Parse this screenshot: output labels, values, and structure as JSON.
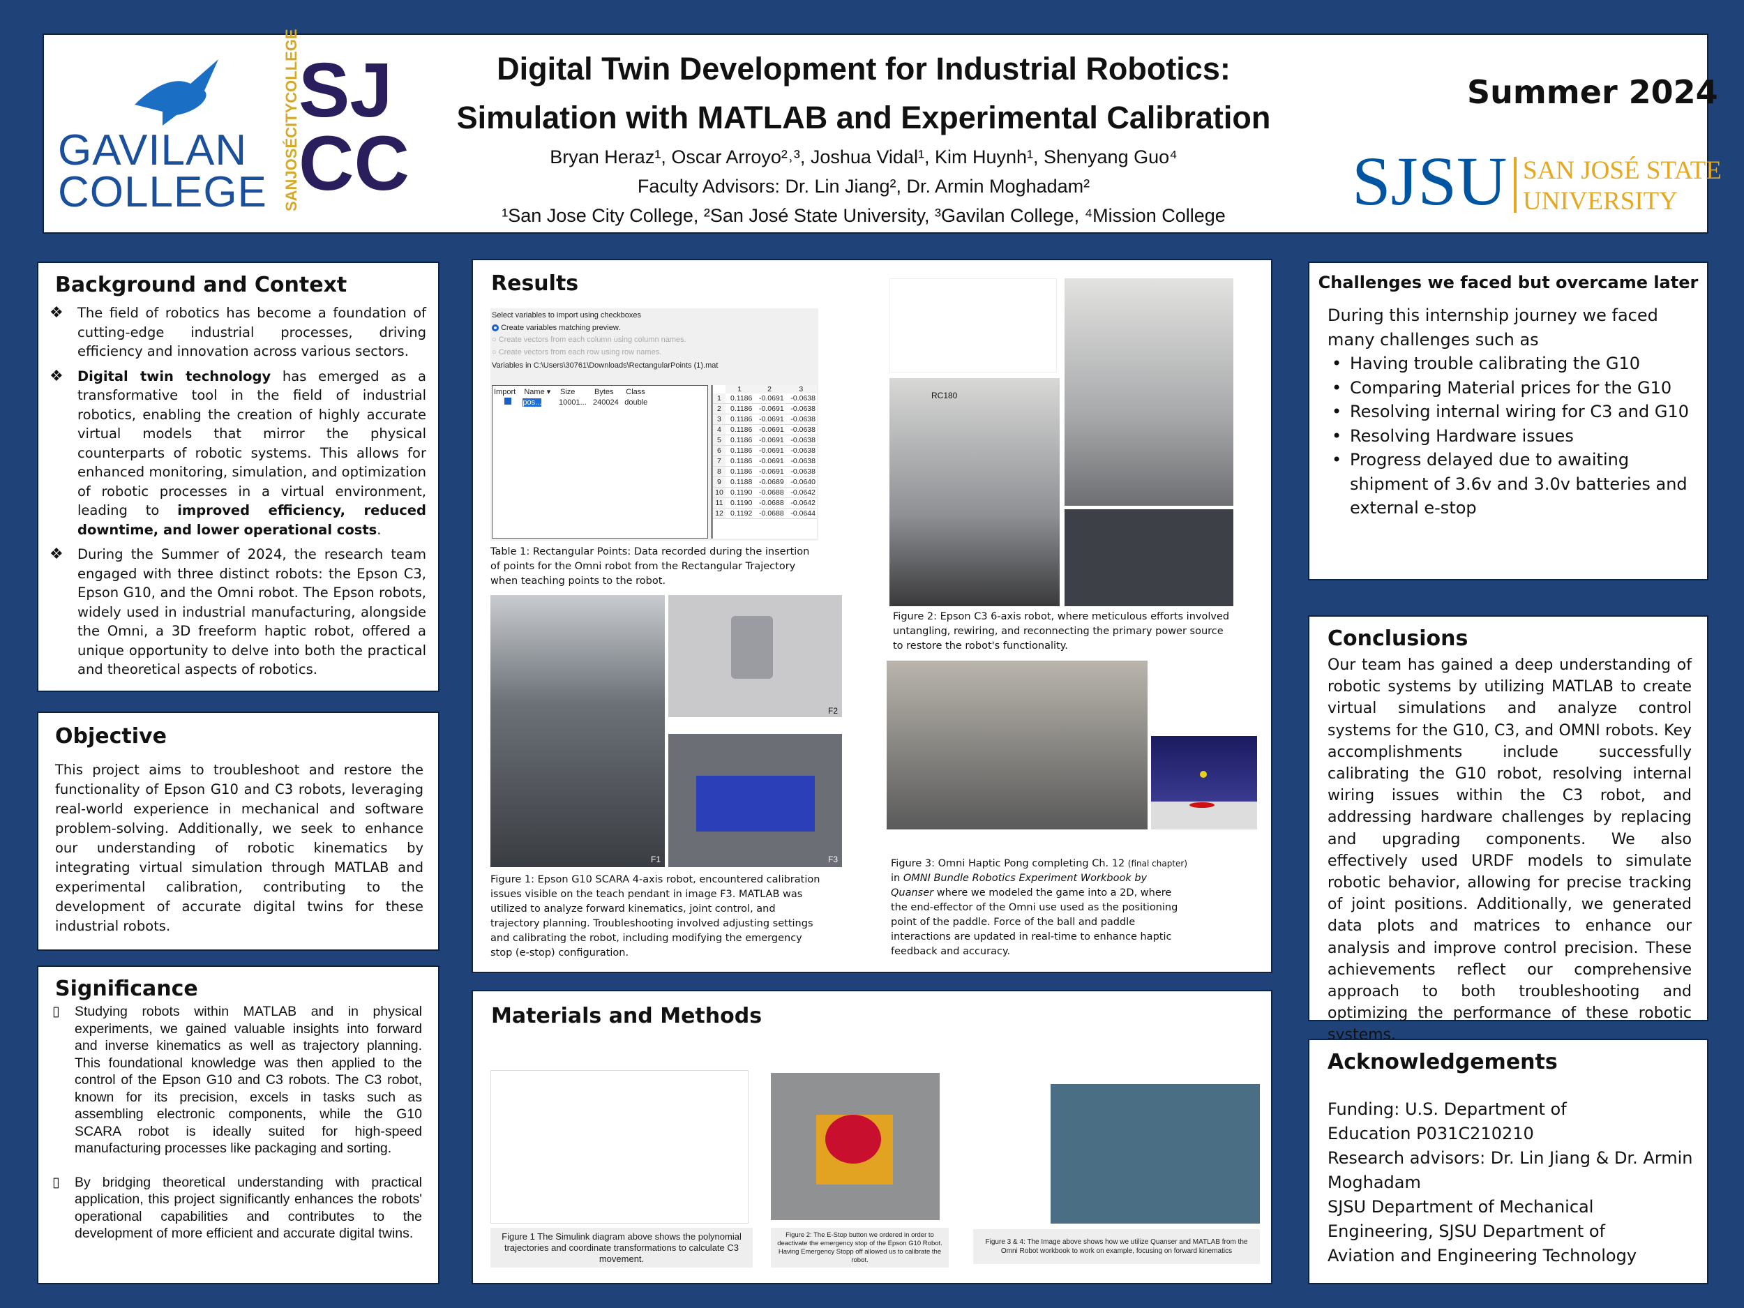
{
  "header": {
    "title_line1": "Digital Twin Development for Industrial Robotics:",
    "title_line2": "Simulation with MATLAB and Experimental Calibration",
    "authors": "Bryan Heraz¹, Oscar Arroyo²˒³, Joshua Vidal¹, Kim Huynh¹, Shenyang Guo⁴",
    "advisors": "Faculty Advisors: Dr. Lin Jiang², Dr. Armin Moghadam²",
    "affiliations": "¹San Jose City College, ²San José State University, ³Gavilan College, ⁴Mission College",
    "term": "Summer 2024",
    "logo_gavilan_1": "GAVILAN",
    "logo_gavilan_2": "COLLEGE",
    "logo_sjcc_vertical": "SANJOSÉCITYCOLLEGE",
    "logo_sjcc_1": "SJ",
    "logo_sjcc_2": "CC",
    "logo_sjsu": "SJSU",
    "logo_sjsu_name_1": "SAN JOSÉ STATE",
    "logo_sjsu_name_2": "UNIVERSITY"
  },
  "colors": {
    "background": "#1f4379",
    "sjsu_blue": "#0055a2",
    "sjsu_gold": "#e5a823",
    "gavilan_blue": "#1a4f9c",
    "sjcc_purple": "#2a1f5c"
  },
  "background": {
    "heading": "Background and Context",
    "p1": "The field of robotics has become a foundation of cutting-edge industrial processes, driving efficiency and innovation across various sectors.",
    "p2_bold": "Digital twin technology",
    "p2": " has emerged as a transformative tool in the field of industrial robotics, enabling the creation of highly accurate virtual models that mirror the physical counterparts of robotic systems. This allows for enhanced monitoring, simulation, and optimization of robotic processes in a virtual environment, leading to ",
    "p2_bold_end": "improved efficiency, reduced downtime, and lower operational costs",
    "p2_end": ".",
    "p3": "During the Summer of 2024, the research team engaged with three distinct robots: the Epson C3, Epson G10, and the Omni robot. The Epson robots, widely used in industrial manufacturing, alongside the Omni, a 3D freeform haptic robot, offered a unique opportunity to delve into both the practical and theoretical aspects of robotics."
  },
  "objective": {
    "heading": "Objective",
    "text": "This project aims to troubleshoot and restore the functionality of Epson G10 and C3 robots, leveraging real-world experience in mechanical and software problem-solving. Additionally, we seek to enhance our understanding of robotic kinematics by integrating virtual simulation through MATLAB and experimental calibration, contributing to the development of accurate digital twins for these industrial robots."
  },
  "significance": {
    "heading": "Significance",
    "p1": "Studying robots within MATLAB and in physical experiments, we gained valuable insights into forward and inverse kinematics as well as trajectory planning. This foundational knowledge was then applied to the control of the Epson G10 and C3 robots. The C3 robot, known for its precision, excels in tasks such as assembling electronic components, while the G10 SCARA robot is ideally suited for high-speed manufacturing processes like packaging and sorting.",
    "p2": "By bridging theoretical understanding with practical application, this project significantly enhances the robots' operational capabilities and contributes to the development of more efficient and accurate digital twins."
  },
  "results": {
    "heading": "Results",
    "import_dialog": {
      "prompt": "Select variables to import using checkboxes",
      "opt1": "Create variables matching preview.",
      "opt2": "Create vectors from each column using column names.",
      "opt3": "Create vectors from each row using row names.",
      "path": "Variables in C:\\Users\\30761\\Downloads\\RectangularPoints (1).mat",
      "cols": [
        "Import",
        "Name ▾",
        "Size",
        "Bytes",
        "Class"
      ],
      "var": {
        "name": "pos...",
        "size": "10001...",
        "bytes": "240024",
        "class": "double"
      },
      "grid_cols": [
        "1",
        "2",
        "3"
      ],
      "rows": [
        [
          "1",
          "0.1186",
          "-0.0691",
          "-0.0638"
        ],
        [
          "2",
          "0.1186",
          "-0.0691",
          "-0.0638"
        ],
        [
          "3",
          "0.1186",
          "-0.0691",
          "-0.0638"
        ],
        [
          "4",
          "0.1186",
          "-0.0691",
          "-0.0638"
        ],
        [
          "5",
          "0.1186",
          "-0.0691",
          "-0.0638"
        ],
        [
          "6",
          "0.1186",
          "-0.0691",
          "-0.0638"
        ],
        [
          "7",
          "0.1186",
          "-0.0691",
          "-0.0638"
        ],
        [
          "8",
          "0.1186",
          "-0.0691",
          "-0.0638"
        ],
        [
          "9",
          "0.1188",
          "-0.0689",
          "-0.0640"
        ],
        [
          "10",
          "0.1190",
          "-0.0688",
          "-0.0642"
        ],
        [
          "11",
          "0.1190",
          "-0.0688",
          "-0.0642"
        ],
        [
          "12",
          "0.1192",
          "-0.0688",
          "-0.0644"
        ]
      ]
    },
    "table1_caption": "Table 1: Rectangular Points: Data recorded during the insertion of points for the Omni robot from the Rectangular Trajectory when teaching points to the robot.",
    "fig1_caption": "Figure 1: Epson G10 SCARA 4-axis robot, encountered calibration issues visible on the teach pendant in image F3. MATLAB was utilized to analyze forward kinematics, joint control, and trajectory planning. Troubleshooting involved adjusting settings and calibrating the robot, including modifying the emergency stop (e-stop) configuration.",
    "fig1_labels": {
      "f1": "F1",
      "f2": "F2",
      "f3": "F3"
    },
    "rc_label": "RC180",
    "fig2_caption": "Figure 2: Epson C3 6-axis robot, where meticulous efforts involved untangling, rewiring, and reconnecting the primary power source to restore the robot's functionality.",
    "fig3_caption_a": "Figure 3: Omni Haptic Pong completing Ch. 12 ",
    "fig3_caption_small": "(final chapter)",
    "fig3_caption_b": " in ",
    "fig3_caption_italic": "OMNI Bundle Robotics Experiment Workbook by Quanser",
    "fig3_caption_c": " where we modeled the game into a 2D, where the end-effector of the Omni use used as the positioning point of the paddle. Force of the ball and paddle interactions are updated in real-time to enhance haptic feedback and accuracy."
  },
  "materials": {
    "heading": "Materials and Methods",
    "cap1": "Figure 1 The Simulink diagram above shows the polynomial trajectories and coordinate transformations to calculate C3 movement.",
    "cap2": "Figure 2: The E-Stop button we ordered in order to deactivate the emergency stop of the Epson G10 Robot. Having Emergency Stopp off allowed us to calibrate the robot.",
    "cap3": "Figure 3 & 4: The Image above shows how we utilize Quanser and MATLAB from the Omni Robot workbook to work on example, focusing on forward kinematics"
  },
  "challenges": {
    "heading": "Challenges we faced but overcame later",
    "intro": "During this internship journey we faced many challenges such as",
    "items": [
      "Having trouble calibrating the G10",
      "Comparing Material prices for the G10",
      "Resolving internal wiring for C3 and G10",
      "Resolving Hardware issues",
      "Progress delayed due to awaiting shipment of 3.6v and 3.0v batteries and external e-stop"
    ]
  },
  "conclusions": {
    "heading": "Conclusions",
    "text": "Our team has gained a deep understanding of robotic systems by utilizing MATLAB to create virtual simulations and analyze control systems for the G10, C3, and OMNI robots. Key accomplishments include successfully calibrating the G10 robot, resolving internal wiring issues within the C3 robot, and addressing hardware challenges by replacing and upgrading components. We also effectively used URDF models to simulate robotic behavior, allowing for precise tracking of joint positions. Additionally, we generated data plots and matrices to enhance our analysis and improve control precision. These achievements reflect our comprehensive approach to both troubleshooting and optimizing the performance of these robotic systems."
  },
  "acknowledgements": {
    "heading": "Acknowledgements",
    "lines": [
      "Funding: U.S. Department of Education P031C210210",
      "Research advisors: Dr. Lin Jiang & Dr. Armin Moghadam",
      "SJSU Department of Mechanical Engineering, SJSU Department of Aviation and Engineering Technology"
    ]
  }
}
